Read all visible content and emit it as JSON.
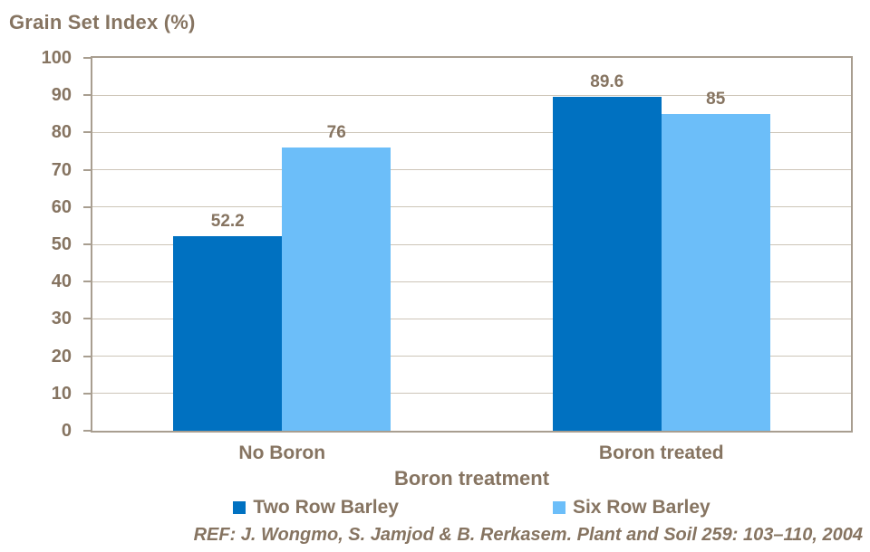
{
  "chart_data": {
    "type": "bar",
    "title": "Grain Set Index (%)",
    "xlabel": "Boron treatment",
    "ylabel": "Grain Set Index (%)",
    "categories": [
      "No Boron",
      "Boron treated"
    ],
    "series": [
      {
        "name": "Two Row Barley",
        "color": "#0071C1",
        "values": [
          52.2,
          89.6
        ]
      },
      {
        "name": "Six Row Barley",
        "color": "#6CBEF9",
        "values": [
          76,
          85
        ]
      }
    ],
    "data_labels": [
      "52.2",
      "76",
      "89.6",
      "85"
    ],
    "ylim": [
      0,
      100
    ],
    "ytick_step": 10,
    "grid": true,
    "legend_position": "bottom"
  },
  "reference": "REF: J. Wongmo, S. Jamjod & B. Rerkasem. Plant and Soil 259: 103–110, 2004",
  "colors": {
    "text_brown": "#867461",
    "axis_frame": "#A89E90",
    "gridline": "#CDC5B8",
    "background": "#ffffff"
  }
}
